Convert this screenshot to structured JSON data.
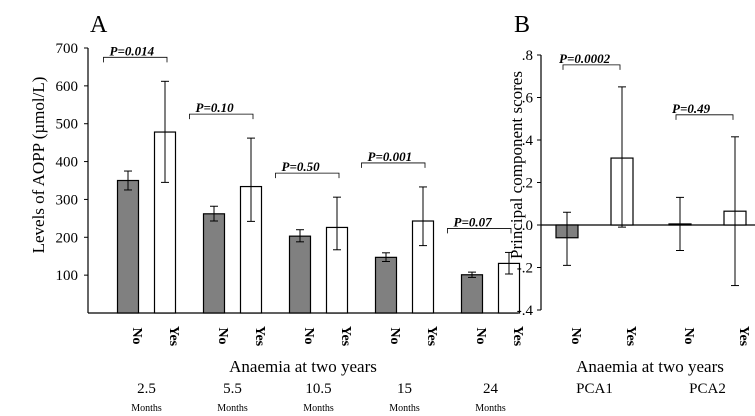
{
  "chart_data": [
    {
      "type": "bar",
      "panel": "A",
      "ylabel": "Levels of AOPP (µmol/L)",
      "xlabel": "Anaemia at two years",
      "ylim": [
        0,
        700
      ],
      "yticks": [
        100,
        200,
        300,
        400,
        500,
        600,
        700
      ],
      "grid": false,
      "colors": {
        "No": "#808080",
        "Yes": "#ffffff",
        "stroke": "#000000"
      },
      "groups": [
        {
          "label": "2.5",
          "sublabel": "Months",
          "p": "P=0.014",
          "bars": [
            {
              "category": "No",
              "value": 350,
              "err_low": 325,
              "err_high": 375
            },
            {
              "category": "Yes",
              "value": 478,
              "err_low": 345,
              "err_high": 612
            }
          ]
        },
        {
          "label": "5.5",
          "sublabel": "Months",
          "p": "P=0.10",
          "bars": [
            {
              "category": "No",
              "value": 262,
              "err_low": 243,
              "err_high": 282
            },
            {
              "category": "Yes",
              "value": 334,
              "err_low": 242,
              "err_high": 462
            }
          ]
        },
        {
          "label": "10.5",
          "sublabel": "Months",
          "p": "P=0.50",
          "bars": [
            {
              "category": "No",
              "value": 203,
              "err_low": 188,
              "err_high": 220
            },
            {
              "category": "Yes",
              "value": 226,
              "err_low": 167,
              "err_high": 306
            }
          ]
        },
        {
          "label": "15",
          "sublabel": "Months",
          "p": "P=0.001",
          "bars": [
            {
              "category": "No",
              "value": 147,
              "err_low": 136,
              "err_high": 159
            },
            {
              "category": "Yes",
              "value": 243,
              "err_low": 178,
              "err_high": 333
            }
          ]
        },
        {
          "label": "24",
          "sublabel": "Months",
          "p": "P=0.07",
          "bars": [
            {
              "category": "No",
              "value": 101,
              "err_low": 94,
              "err_high": 108
            },
            {
              "category": "Yes",
              "value": 131,
              "err_low": 103,
              "err_high": 160
            }
          ]
        }
      ]
    },
    {
      "type": "bar",
      "panel": "B",
      "ylabel": "Principal component scores",
      "xlabel": "Anaemia at two years",
      "ylim": [
        -0.4,
        0.8
      ],
      "yticks": [
        ".8",
        ".6",
        ".4",
        ".2",
        ".0",
        "-.2",
        "-.4"
      ],
      "ytick_values": [
        0.8,
        0.6,
        0.4,
        0.2,
        0.0,
        -0.2,
        -0.4
      ],
      "grid": false,
      "colors": {
        "No": "#808080",
        "Yes": "#ffffff",
        "stroke": "#000000"
      },
      "groups": [
        {
          "label": "PCA1",
          "p": "P=0.0002",
          "bars": [
            {
              "category": "No",
              "value": -0.06,
              "err_low": -0.19,
              "err_high": 0.06
            },
            {
              "category": "Yes",
              "value": 0.315,
              "err_low": -0.01,
              "err_high": 0.65
            }
          ]
        },
        {
          "label": "PCA2",
          "p": "P=0.49",
          "bars": [
            {
              "category": "No",
              "value": 0.005,
              "err_low": -0.12,
              "err_high": 0.13
            },
            {
              "category": "Yes",
              "value": 0.065,
              "err_low": -0.285,
              "err_high": 0.415
            }
          ]
        }
      ]
    }
  ]
}
